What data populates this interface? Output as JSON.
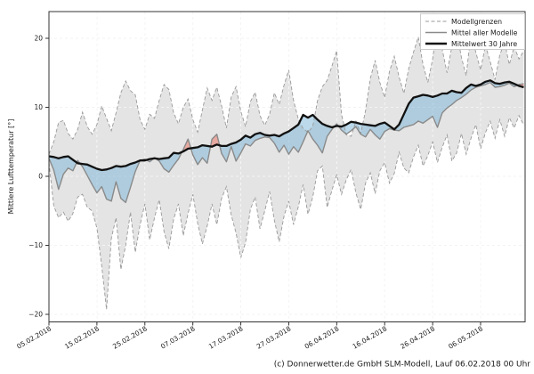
{
  "figure": {
    "caption": "(c) Donnerwetter.de GmbH SLM-Modell, Lauf 06.02.2018 00 Uhr"
  },
  "chart_data": {
    "type": "area",
    "title": "",
    "xlabel": "",
    "ylabel": "Mittlere Lufttemperatur [°]",
    "grid": true,
    "legend_position": "upper right",
    "ylim": [
      -21.1,
      23.9
    ],
    "y_ticks": [
      20,
      10,
      0,
      -10,
      -20
    ],
    "y_tick_labels": [
      "20",
      "10",
      "0",
      "−10",
      "−20"
    ],
    "x_tick_days": [
      0,
      10,
      20,
      30,
      40,
      50,
      60,
      70,
      80,
      90
    ],
    "x_tick_labels": [
      "05.02.2018",
      "15.02.2018",
      "25.02.2018",
      "07.03.2018",
      "17.03.2018",
      "27.03.2018",
      "06.04.2018",
      "16.04.2018",
      "26.04.2018",
      "06.05.2018"
    ],
    "x_start_date": "05.02.2018",
    "x_days_total": 99,
    "legend": [
      {
        "label": "Modellgrenzen",
        "style": "dashed-gray"
      },
      {
        "label": "Mittel aller Modelle",
        "style": "solid-gray"
      },
      {
        "label": "Mittelwert 30 Jahre",
        "style": "thick-black"
      }
    ],
    "series": [
      {
        "name": "Modellgrenzen obere Grenze",
        "role": "upper_bound",
        "values": [
          3.2,
          5.0,
          7.8,
          8.1,
          6.2,
          5.4,
          6.8,
          9.3,
          7.2,
          6.1,
          7.5,
          10.2,
          8.4,
          6.6,
          9.2,
          12.1,
          13.8,
          12.4,
          11.8,
          8.2,
          6.8,
          9.0,
          8.4,
          11.0,
          13.3,
          12.6,
          9.2,
          7.6,
          10.0,
          11.2,
          8.2,
          6.4,
          9.6,
          12.8,
          11.0,
          12.9,
          10.2,
          7.0,
          11.5,
          13.0,
          9.4,
          7.2,
          10.8,
          12.2,
          8.8,
          7.4,
          9.0,
          12.1,
          10.4,
          13.2,
          15.4,
          11.0,
          8.3,
          6.9,
          6.4,
          7.2,
          11.0,
          13.0,
          13.9,
          16.0,
          18.2,
          9.0,
          6.0,
          5.8,
          8.0,
          6.2,
          9.5,
          14.2,
          16.8,
          13.6,
          11.4,
          15.2,
          17.4,
          14.4,
          12.0,
          15.6,
          18.0,
          20.2,
          16.2,
          13.6,
          17.0,
          21.9,
          18.4,
          15.0,
          18.8,
          21.0,
          17.2,
          14.6,
          20.8,
          18.0,
          15.4,
          19.0,
          16.6,
          14.0,
          17.6,
          19.4,
          16.2,
          18.8,
          17.0,
          18.2
        ]
      },
      {
        "name": "Modellgrenzen untere Grenze",
        "role": "lower_bound",
        "values": [
          2.0,
          -4.3,
          -6.0,
          -5.2,
          -6.5,
          -5.4,
          -3.0,
          -2.6,
          -4.5,
          -5.0,
          -7.5,
          -13.0,
          -19.3,
          -9.0,
          -6.0,
          -13.5,
          -10.0,
          -5.2,
          -11.0,
          -7.0,
          -4.0,
          -9.2,
          -6.0,
          -3.4,
          -8.0,
          -10.5,
          -6.2,
          -4.0,
          -8.6,
          -5.4,
          -2.6,
          -6.8,
          -9.8,
          -7.2,
          -4.0,
          -7.0,
          -3.2,
          -1.5,
          -5.6,
          -8.2,
          -11.8,
          -9.6,
          -4.8,
          -3.0,
          -7.6,
          -5.0,
          -2.2,
          -6.4,
          -9.5,
          -5.8,
          -3.6,
          -7.0,
          -4.4,
          -1.2,
          -5.5,
          -3.0,
          0.8,
          1.5,
          -4.5,
          -2.0,
          0.2,
          -2.6,
          -0.5,
          1.0,
          -2.4,
          -4.8,
          -1.0,
          0.5,
          -2.5,
          0.8,
          2.0,
          -1.0,
          0.4,
          3.5,
          1.2,
          0.5,
          2.8,
          4.5,
          1.5,
          3.0,
          5.0,
          2.0,
          4.2,
          6.0,
          2.2,
          3.4,
          6.2,
          3.2,
          5.5,
          7.5,
          4.0,
          6.3,
          8.0,
          5.5,
          8.2,
          5.8,
          8.5,
          7.0,
          8.8,
          7.4
        ]
      },
      {
        "name": "Mittel aller Modelle",
        "role": "model_mean",
        "values": [
          2.6,
          0.9,
          -1.9,
          0.3,
          1.2,
          0.8,
          2.3,
          1.4,
          0.1,
          -1.2,
          -2.4,
          -1.5,
          -3.3,
          -3.6,
          -0.8,
          -3.2,
          -3.8,
          -1.6,
          0.7,
          2.3,
          2.5,
          2.1,
          2.7,
          2.2,
          1.1,
          0.6,
          1.6,
          2.5,
          3.9,
          5.4,
          3.1,
          1.7,
          2.7,
          1.9,
          5.4,
          6.1,
          3.3,
          2.1,
          4.3,
          2.2,
          3.4,
          4.7,
          4.4,
          5.2,
          5.5,
          5.7,
          5.6,
          4.8,
          3.5,
          4.5,
          3.2,
          4.3,
          3.5,
          5.0,
          6.6,
          5.4,
          4.5,
          3.4,
          5.8,
          6.8,
          7.6,
          6.7,
          6.1,
          6.6,
          7.2,
          6.1,
          5.7,
          6.8,
          6.0,
          5.4,
          6.5,
          6.9,
          6.7,
          6.6,
          7.1,
          7.3,
          7.5,
          8.0,
          7.7,
          8.2,
          8.7,
          7.1,
          9.2,
          9.9,
          10.4,
          11.0,
          11.4,
          11.9,
          12.5,
          12.9,
          13.1,
          13.3,
          13.6,
          12.9,
          13.0,
          13.2,
          13.5,
          13.0,
          13.3,
          13.4
        ]
      },
      {
        "name": "Mittelwert 30 Jahre",
        "role": "mean_30y",
        "values": [
          2.9,
          2.8,
          2.6,
          2.8,
          2.9,
          2.4,
          1.9,
          1.8,
          1.7,
          1.4,
          1.1,
          0.9,
          1.0,
          1.2,
          1.5,
          1.4,
          1.5,
          1.8,
          2.0,
          2.3,
          2.3,
          2.5,
          2.6,
          2.5,
          2.6,
          2.7,
          3.4,
          3.3,
          3.6,
          4.0,
          4.1,
          4.2,
          4.5,
          4.4,
          4.3,
          4.6,
          4.4,
          4.4,
          4.7,
          4.9,
          5.3,
          5.9,
          5.6,
          6.1,
          6.3,
          6.0,
          5.9,
          6.0,
          5.8,
          6.2,
          6.5,
          7.0,
          7.5,
          8.9,
          8.5,
          8.9,
          8.2,
          7.6,
          7.3,
          7.1,
          7.3,
          7.2,
          7.5,
          7.9,
          7.8,
          7.6,
          7.5,
          7.4,
          7.3,
          7.6,
          7.8,
          7.3,
          6.8,
          7.5,
          9.0,
          10.5,
          11.4,
          11.6,
          11.8,
          11.7,
          11.5,
          11.7,
          12.0,
          12.0,
          12.4,
          12.2,
          12.1,
          12.8,
          13.3,
          13.1,
          13.3,
          13.7,
          13.9,
          13.5,
          13.4,
          13.6,
          13.7,
          13.4,
          13.1,
          12.9
        ]
      }
    ],
    "colors": {
      "band_fill": "#e4e4e4",
      "bound_line": "#999999",
      "model_mean_line": "#8a8a8a",
      "mean30_line": "#111111",
      "below_normal_fill": "rgba(120,180,215,0.5)",
      "above_normal_fill": "rgba(235,120,104,0.55)",
      "grid_under": "#d9d9d9",
      "grid_over": "rgba(255,255,255,0.8)",
      "spine": "#333333"
    }
  }
}
